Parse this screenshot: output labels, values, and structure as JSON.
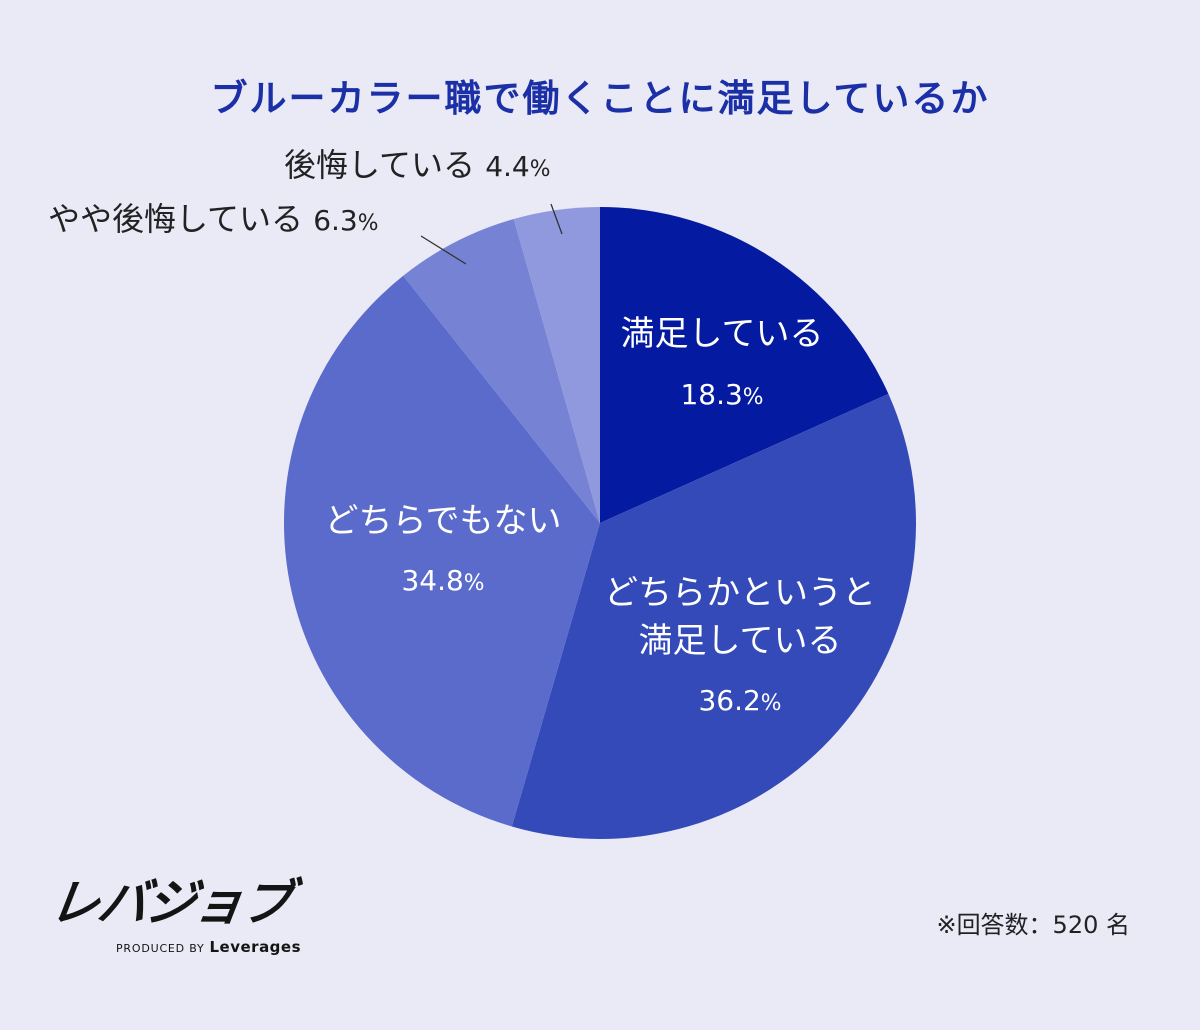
{
  "chart_data": {
    "type": "pie",
    "title": "ブルーカラー職で働くことに満足しているか",
    "start_angle_deg": 0,
    "direction": "clockwise",
    "slices": [
      {
        "lines": [
          "満足している"
        ],
        "value": 18.3,
        "value_label": "18.3",
        "color": "#041ba1",
        "label_position": "inside"
      },
      {
        "lines": [
          "どちらかというと",
          "満足している"
        ],
        "value": 36.2,
        "value_label": "36.2",
        "color": "#344ab8",
        "label_position": "inside"
      },
      {
        "lines": [
          "どちらでもない"
        ],
        "value": 34.8,
        "value_label": "34.8",
        "color": "#5b6bcb",
        "label_position": "inside"
      },
      {
        "lines": [
          "やや後悔している"
        ],
        "value": 6.3,
        "value_label": "6.3",
        "color": "#7683d4",
        "label_position": "outside"
      },
      {
        "lines": [
          "後悔している"
        ],
        "value": 4.4,
        "value_label": "4.4",
        "color": "#9199de",
        "label_position": "outside"
      }
    ],
    "unit": "%"
  },
  "brand": {
    "name": "レバジョブ",
    "tagline_prefix": "PRODUCED BY",
    "tagline_company": "Leverages"
  },
  "note": "※回答数：520 名"
}
